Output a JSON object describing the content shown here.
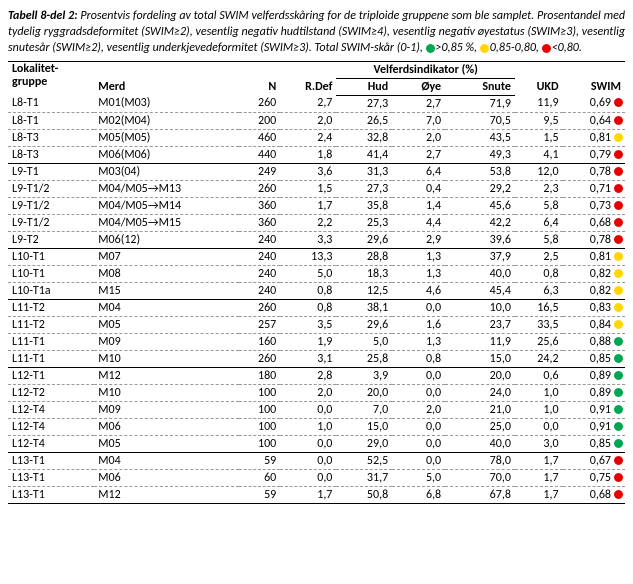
{
  "caption": {
    "lead": "Tabell 8-del 2:",
    "body": "Prosentvis fordeling av total SWIM velferdsskåring for de triploide gruppene som ble samplet. Prosentandel med tydelig ryggradsdeformitet (SWIM≥2), vesentlig negativ hudtilstand (SWIM≥4), vesentlig negativ øyestatus (SWIM≥3), vesentlig snutesår (SWIM≥2), vesentlig underkjevedeformitet (SWIM≥3). Total SWIM-skår (0-1),",
    "legend": [
      {
        "color": "green",
        "text": ">0,85 %,"
      },
      {
        "color": "yellow",
        "text": "0,85-0,80,"
      },
      {
        "color": "red",
        "text": "<0,80."
      }
    ]
  },
  "headers": {
    "lok": "Lokalitet-gruppe",
    "merd": "Merd",
    "n": "N",
    "rdef": "R.Def",
    "velf": "Velferdsindikator (%)",
    "hud": "Hud",
    "oye": "Øye",
    "snute": "Snute",
    "ukd": "UKD",
    "swim": "SWIM"
  },
  "colors": {
    "green": "#00a651",
    "yellow": "#ffd600",
    "red": "#e60000"
  },
  "rows": [
    {
      "lok": "L8-T1",
      "merd": "M01(M03)",
      "n": "260",
      "rdef": "2,7",
      "hud": "27,3",
      "oye": "2,7",
      "snute": "71,9",
      "ukd": "11,9",
      "swim": "0,69",
      "dot": "red"
    },
    {
      "lok": "L8-T1",
      "merd": "M02(M04)",
      "n": "200",
      "rdef": "2,0",
      "hud": "26,5",
      "oye": "7,0",
      "snute": "70,5",
      "ukd": "9,5",
      "swim": "0,64",
      "dot": "red"
    },
    {
      "lok": "L8-T3",
      "merd": "M05(M05)",
      "n": "460",
      "rdef": "2,4",
      "hud": "32,8",
      "oye": "2,0",
      "snute": "43,5",
      "ukd": "1,5",
      "swim": "0,81",
      "dot": "yellow"
    },
    {
      "lok": "L8-T3",
      "merd": "M06(M06)",
      "n": "440",
      "rdef": "1,8",
      "hud": "41,4",
      "oye": "2,7",
      "snute": "49,3",
      "ukd": "4,1",
      "swim": "0,79",
      "dot": "red",
      "groupEnd": true
    },
    {
      "lok": "L9-T1",
      "merd": "M03(04)",
      "n": "249",
      "rdef": "3,6",
      "hud": "31,3",
      "oye": "6,4",
      "snute": "53,8",
      "ukd": "12,0",
      "swim": "0,78",
      "dot": "red"
    },
    {
      "lok": "L9-T1/2",
      "merd": "M04/M05→M13",
      "n": "260",
      "rdef": "1,5",
      "hud": "27,3",
      "oye": "0,4",
      "snute": "29,2",
      "ukd": "2,3",
      "swim": "0,71",
      "dot": "red"
    },
    {
      "lok": "L9-T1/2",
      "merd": "M04/M05→M14",
      "n": "360",
      "rdef": "1,7",
      "hud": "35,8",
      "oye": "1,4",
      "snute": "45,6",
      "ukd": "5,8",
      "swim": "0,73",
      "dot": "red"
    },
    {
      "lok": "L9-T1/2",
      "merd": "M04/M05→M15",
      "n": "360",
      "rdef": "2,2",
      "hud": "25,3",
      "oye": "4,4",
      "snute": "42,2",
      "ukd": "6,4",
      "swim": "0,68",
      "dot": "red"
    },
    {
      "lok": "L9-T2",
      "merd": "M06(12)",
      "n": "240",
      "rdef": "3,3",
      "hud": "29,6",
      "oye": "2,9",
      "snute": "39,6",
      "ukd": "5,8",
      "swim": "0,78",
      "dot": "red",
      "groupEnd": true
    },
    {
      "lok": "L10-T1",
      "merd": "M07",
      "n": "240",
      "rdef": "13,3",
      "hud": "28,8",
      "oye": "1,3",
      "snute": "37,9",
      "ukd": "2,5",
      "swim": "0,81",
      "dot": "yellow"
    },
    {
      "lok": "L10-T1",
      "merd": "M08",
      "n": "240",
      "rdef": "5,0",
      "hud": "18,3",
      "oye": "1,3",
      "snute": "40,0",
      "ukd": "0,8",
      "swim": "0,82",
      "dot": "yellow"
    },
    {
      "lok": "L10-T1a",
      "merd": "M15",
      "n": "240",
      "rdef": "0,8",
      "hud": "12,5",
      "oye": "4,6",
      "snute": "45,4",
      "ukd": "6,3",
      "swim": "0,82",
      "dot": "yellow",
      "groupEnd": true
    },
    {
      "lok": "L11-T2",
      "merd": "M04",
      "n": "260",
      "rdef": "0,8",
      "hud": "38,1",
      "oye": "0,0",
      "snute": "10,0",
      "ukd": "16,5",
      "swim": "0,83",
      "dot": "yellow"
    },
    {
      "lok": "L11-T2",
      "merd": "M05",
      "n": "257",
      "rdef": "3,5",
      "hud": "29,6",
      "oye": "1,6",
      "snute": "23,7",
      "ukd": "33,5",
      "swim": "0,84",
      "dot": "yellow"
    },
    {
      "lok": "L11-T1",
      "merd": "M09",
      "n": "160",
      "rdef": "1,9",
      "hud": "5,0",
      "oye": "1,3",
      "snute": "11,9",
      "ukd": "25,6",
      "swim": "0,88",
      "dot": "green"
    },
    {
      "lok": "L11-T1",
      "merd": "M10",
      "n": "260",
      "rdef": "3,1",
      "hud": "25,8",
      "oye": "0,8",
      "snute": "15,0",
      "ukd": "24,2",
      "swim": "0,85",
      "dot": "green",
      "groupEnd": true
    },
    {
      "lok": "L12-T1",
      "merd": "M12",
      "n": "180",
      "rdef": "2,8",
      "hud": "3,9",
      "oye": "0,0",
      "snute": "20,0",
      "ukd": "0,6",
      "swim": "0,89",
      "dot": "green"
    },
    {
      "lok": "L12-T2",
      "merd": "M10",
      "n": "100",
      "rdef": "2,0",
      "hud": "20,0",
      "oye": "0,0",
      "snute": "24,0",
      "ukd": "1,0",
      "swim": "0,89",
      "dot": "green"
    },
    {
      "lok": "L12-T4",
      "merd": "M09",
      "n": "100",
      "rdef": "0,0",
      "hud": "7,0",
      "oye": "2,0",
      "snute": "21,0",
      "ukd": "1,0",
      "swim": "0,91",
      "dot": "green"
    },
    {
      "lok": "L12-T4",
      "merd": "M06",
      "n": "100",
      "rdef": "1,0",
      "hud": "15,0",
      "oye": "0,0",
      "snute": "25,0",
      "ukd": "0,0",
      "swim": "0,91",
      "dot": "green"
    },
    {
      "lok": "L12-T4",
      "merd": "M05",
      "n": "100",
      "rdef": "0,0",
      "hud": "29,0",
      "oye": "0,0",
      "snute": "40,0",
      "ukd": "3,0",
      "swim": "0,85",
      "dot": "green",
      "groupEnd": true
    },
    {
      "lok": "L13-T1",
      "merd": "M04",
      "n": "59",
      "rdef": "0,0",
      "hud": "52,5",
      "oye": "0,0",
      "snute": "78,0",
      "ukd": "1,7",
      "swim": "0,67",
      "dot": "red"
    },
    {
      "lok": "L13-T1",
      "merd": "M06",
      "n": "60",
      "rdef": "0,0",
      "hud": "31,7",
      "oye": "5,0",
      "snute": "70,0",
      "ukd": "1,7",
      "swim": "0,75",
      "dot": "red"
    },
    {
      "lok": "L13-T1",
      "merd": "M12",
      "n": "59",
      "rdef": "1,7",
      "hud": "50,8",
      "oye": "6,8",
      "snute": "67,8",
      "ukd": "1,7",
      "swim": "0,68",
      "dot": "red",
      "last": true
    }
  ]
}
